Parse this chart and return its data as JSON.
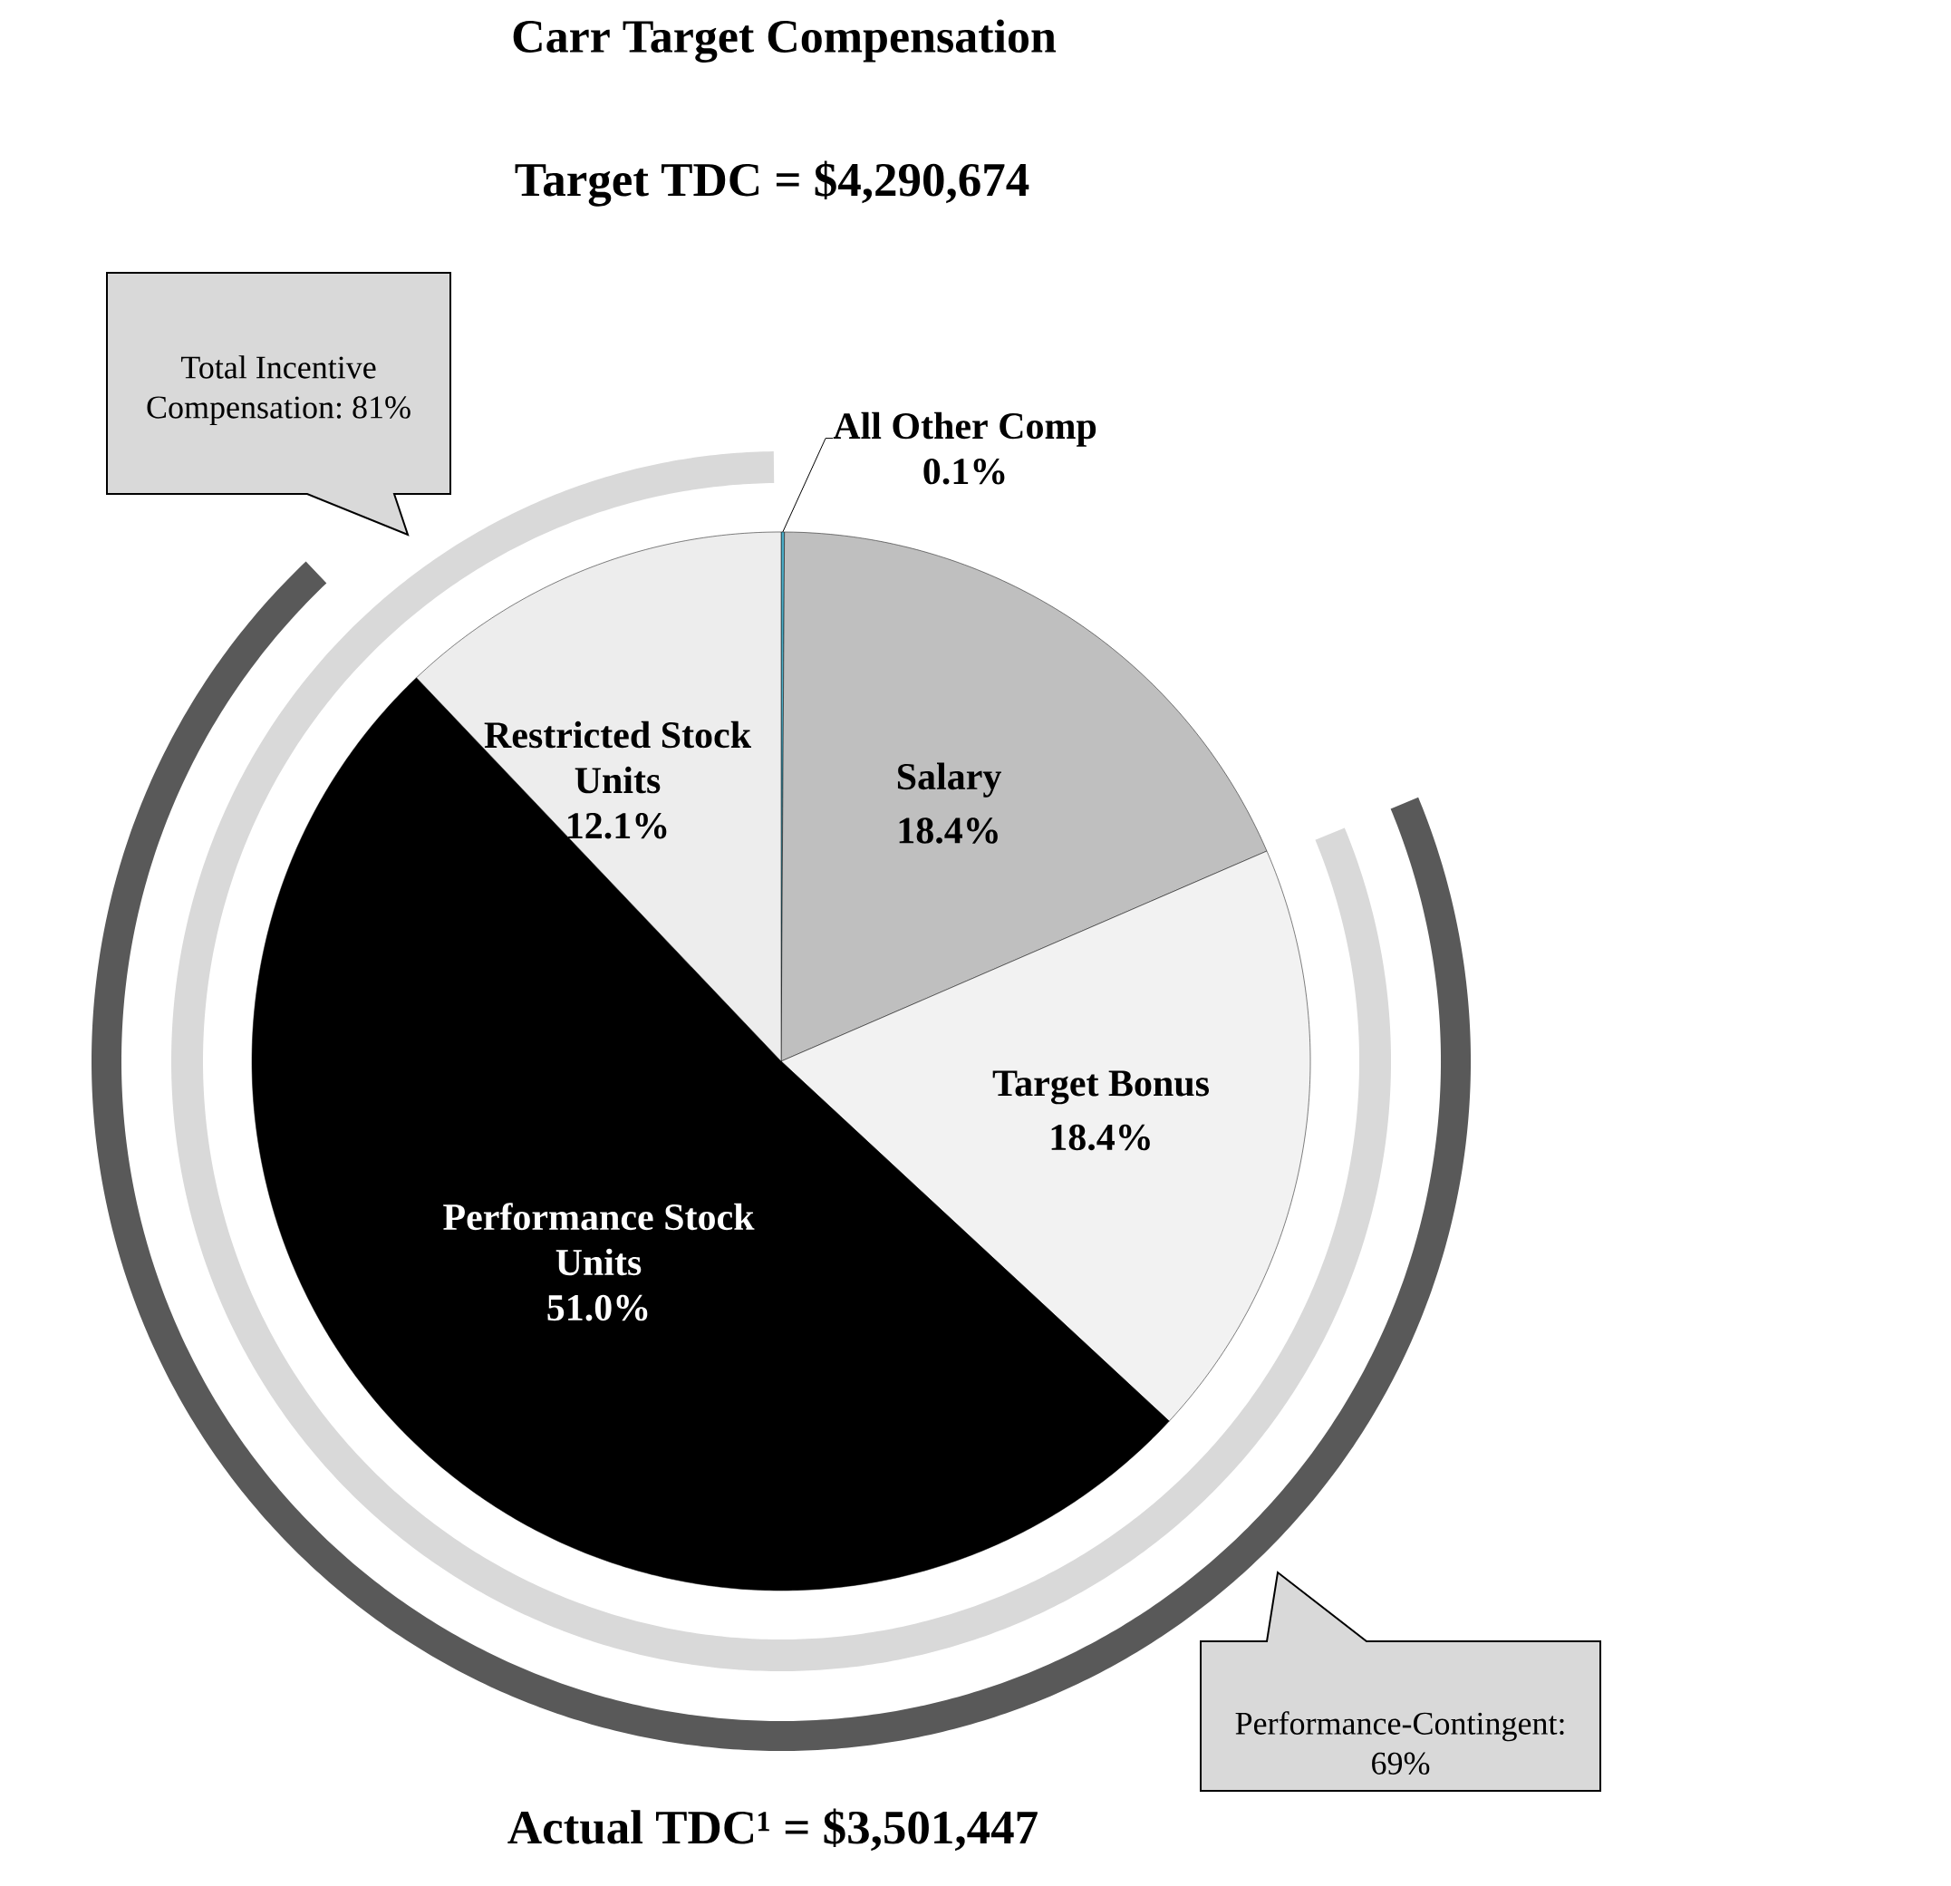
{
  "chart_data": {
    "type": "pie",
    "title": "Carr Target Compensation",
    "subtitle": "Target TDC = $4,290,674",
    "categories": [
      "All Other Comp",
      "Salary",
      "Target Bonus",
      "Performance Stock Units",
      "Restricted Stock Units"
    ],
    "values": [
      0.1,
      18.4,
      18.4,
      51.0,
      12.1
    ],
    "colors": [
      "#4bacc6",
      "#bfbfbf",
      "#f2f2f2",
      "#000000",
      "#ededed"
    ],
    "value_labels": [
      "0.1%",
      "18.4%",
      "18.4%",
      "51.0%",
      "12.1%"
    ],
    "annotations": [
      "Total Incentive Compensation: 81%",
      "Performance-Contingent: 69%",
      "Actual TDC¹ = $3,501,447"
    ]
  }
}
